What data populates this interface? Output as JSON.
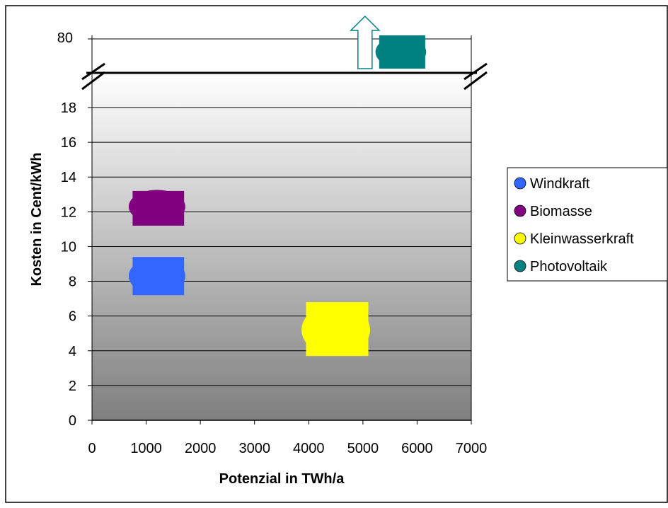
{
  "chart_data": {
    "type": "scatter",
    "title": "",
    "xlabel": "Potenzial in TWh/a",
    "ylabel": "Kosten in Cent/kWh",
    "xlim": [
      0,
      7000
    ],
    "ylim": [
      0,
      20
    ],
    "x_ticks": [
      "0",
      "1000",
      "2000",
      "3000",
      "4000",
      "5000",
      "6000",
      "7000"
    ],
    "y_ticks": [
      "0",
      "2",
      "4",
      "6",
      "8",
      "10",
      "12",
      "14",
      "16",
      "18"
    ],
    "broken_axis_label": "80",
    "broken_axis_note": "upward arrow marks Photovoltaik value off-scale (~80 Cent/kWh)",
    "grid": "horizontal",
    "legend_position": "right",
    "series": [
      {
        "name": "Windkraft",
        "color": "#3366ff",
        "x_range": [
          750,
          1700
        ],
        "y_range": [
          7.2,
          9.4
        ],
        "x": 1200,
        "y": 8.3
      },
      {
        "name": "Biomasse",
        "color": "#800080",
        "x_range": [
          750,
          1700
        ],
        "y_range": [
          11.2,
          13.2
        ],
        "x": 1200,
        "y": 12.3
      },
      {
        "name": "Kleinwasserkraft",
        "color": "#ffff00",
        "x_range": [
          3950,
          5100
        ],
        "y_range": [
          3.7,
          6.8
        ],
        "x": 4500,
        "y": 5.2
      },
      {
        "name": "Photovoltaik",
        "color": "#008080",
        "x_range": [
          5300,
          6150
        ],
        "y_range": [
          75,
          85
        ],
        "x": 5700,
        "y": 80,
        "off_scale": true
      }
    ]
  }
}
